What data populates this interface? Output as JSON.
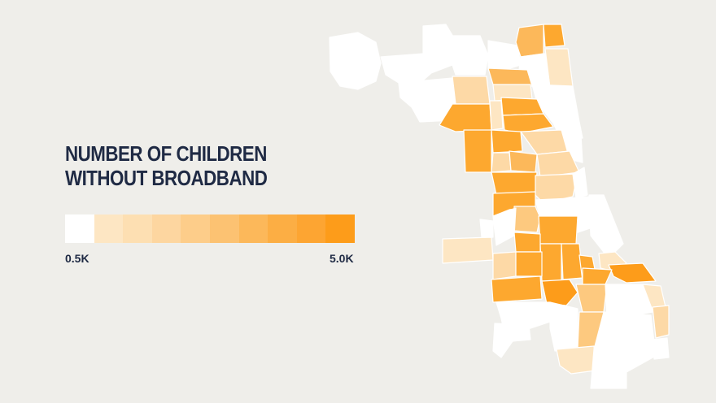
{
  "title_lines": [
    "NUMBER OF CHILDREN",
    "WITHOUT BROADBAND"
  ],
  "legend": {
    "min_label": "0.5K",
    "max_label": "5.0K",
    "colors": [
      "#ffffff",
      "#fde6c3",
      "#fddfb2",
      "#fdd6a0",
      "#fdcd8a",
      "#fcc272",
      "#fcb85a",
      "#fcae44",
      "#fda532",
      "#fd9c1a"
    ]
  },
  "map": {
    "background": "#efeeea",
    "colors": {
      "c0": "#ffffff",
      "c1": "#fde6c3",
      "c2": "#fdd9a6",
      "c3": "#fdc97f",
      "c4": "#fcb85a",
      "c5": "#fda82f",
      "c6": "#fd9c1a"
    }
  }
}
